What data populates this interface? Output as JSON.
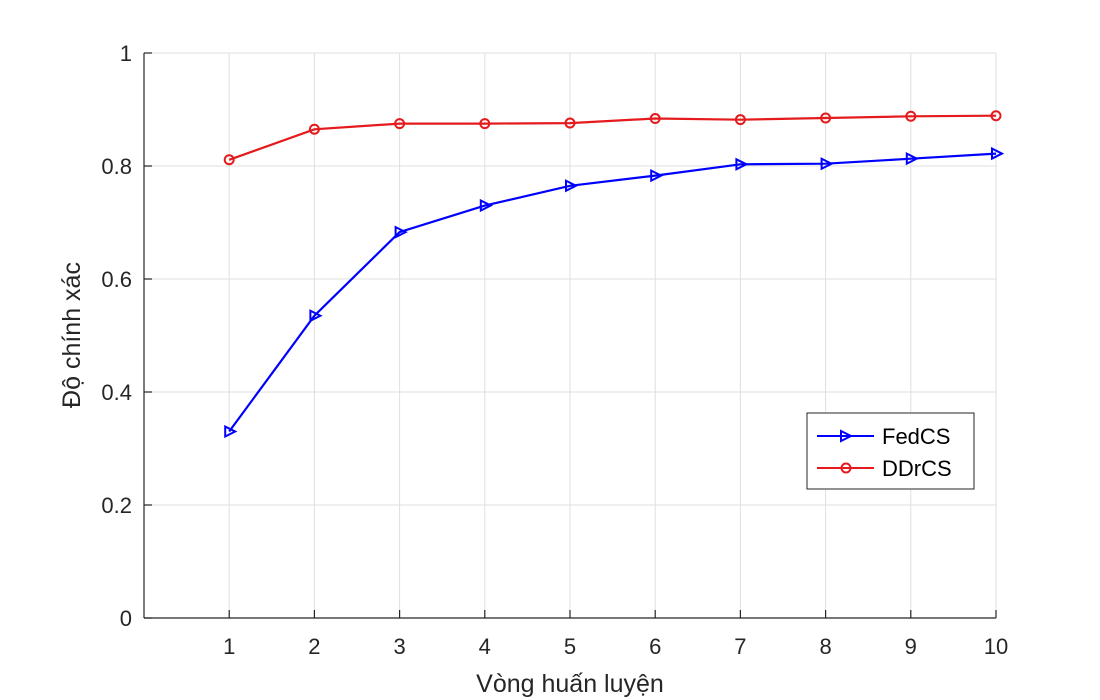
{
  "chart_data": {
    "type": "line",
    "title": "",
    "xlabel": "Vòng huấn luyện",
    "ylabel": "Độ chính xác",
    "x": [
      1,
      2,
      3,
      4,
      5,
      6,
      7,
      8,
      9,
      10
    ],
    "xlim": [
      0,
      10
    ],
    "ylim": [
      0,
      1
    ],
    "xticks": [
      1,
      2,
      3,
      4,
      5,
      6,
      7,
      8,
      9,
      10
    ],
    "yticks": [
      0,
      0.2,
      0.4,
      0.6,
      0.8,
      1
    ],
    "ytick_labels": [
      "0",
      "0.2",
      "0.4",
      "0.6",
      "0.8",
      "1"
    ],
    "grid": true,
    "legend_position": "right",
    "series": [
      {
        "name": "FedCS",
        "color": "#0000ff",
        "marker": "triangle-right",
        "values": [
          0.33,
          0.535,
          0.683,
          0.73,
          0.765,
          0.783,
          0.803,
          0.804,
          0.813,
          0.822
        ]
      },
      {
        "name": "DDrCS",
        "color": "#e41a1c",
        "marker": "circle",
        "values": [
          0.811,
          0.865,
          0.875,
          0.875,
          0.876,
          0.884,
          0.882,
          0.885,
          0.888,
          0.889
        ]
      }
    ]
  }
}
